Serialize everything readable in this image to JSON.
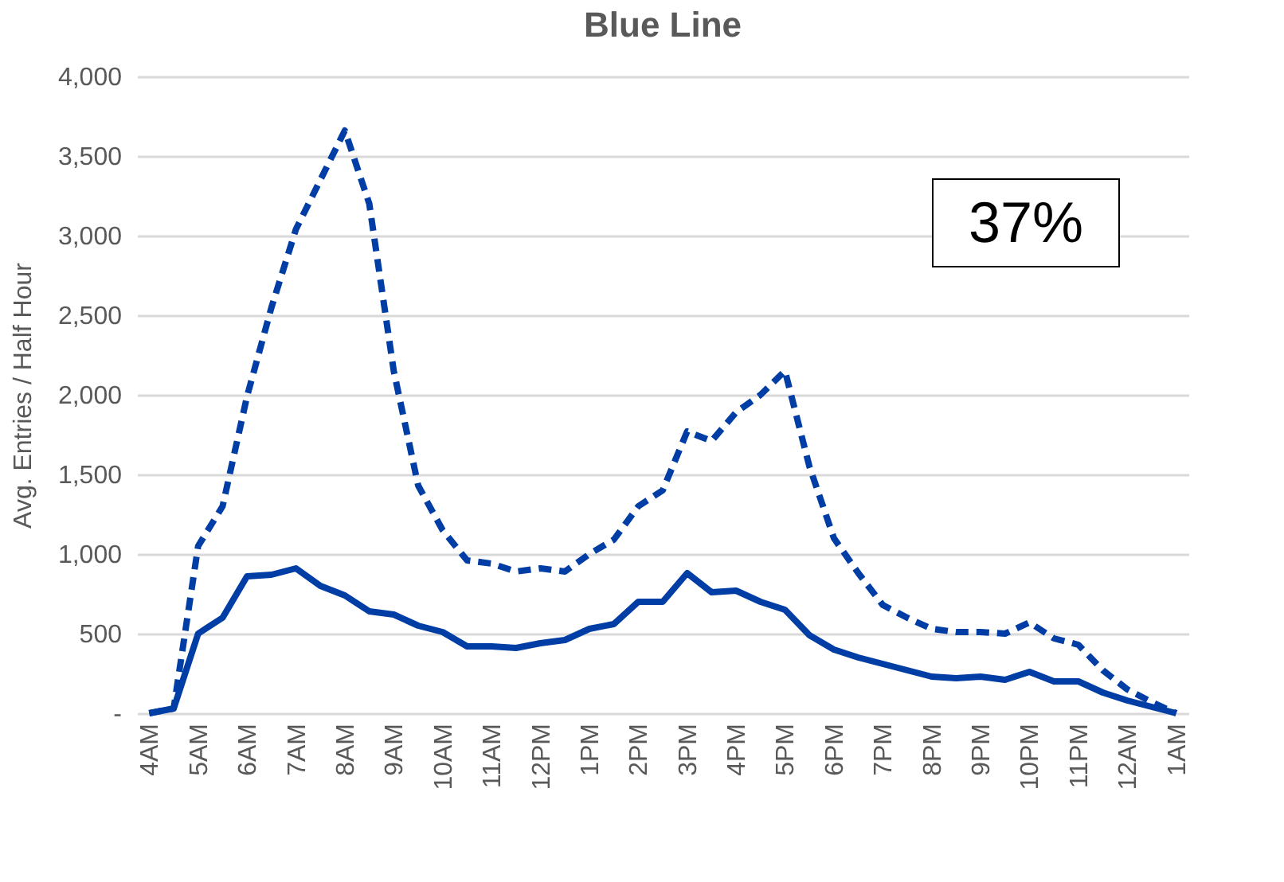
{
  "chart_data": {
    "type": "line",
    "title": "Blue Line",
    "ylabel": "Avg. Entries / Half Hour",
    "categories": [
      "4AM",
      null,
      "5AM",
      null,
      "6AM",
      null,
      "7AM",
      null,
      "8AM",
      null,
      "9AM",
      null,
      "10AM",
      null,
      "11AM",
      null,
      "12PM",
      null,
      "1PM",
      null,
      "2PM",
      null,
      "3PM",
      null,
      "4PM",
      null,
      "5PM",
      null,
      "6PM",
      null,
      "7PM",
      null,
      "8PM",
      null,
      "9PM",
      null,
      "10PM",
      null,
      "11PM",
      null,
      "12AM",
      null,
      "1AM"
    ],
    "series": [
      {
        "color": "#003da5",
        "line_style": "dashed",
        "values": [
          0,
          30,
          1050,
          1300,
          1990,
          2550,
          3040,
          3350,
          3660,
          3200,
          2150,
          1430,
          1150,
          960,
          940,
          890,
          910,
          890,
          1000,
          1090,
          1300,
          1400,
          1770,
          1710,
          1890,
          2000,
          2150,
          1550,
          1100,
          880,
          680,
          600,
          530,
          510,
          510,
          500,
          570,
          470,
          430,
          270,
          150,
          70,
          0
        ]
      },
      {
        "color": "#003da5",
        "line_style": "solid",
        "values": [
          0,
          30,
          500,
          600,
          860,
          870,
          910,
          800,
          740,
          640,
          620,
          550,
          510,
          420,
          420,
          410,
          440,
          460,
          530,
          560,
          700,
          700,
          880,
          760,
          770,
          700,
          650,
          490,
          400,
          350,
          310,
          270,
          230,
          220,
          230,
          210,
          260,
          200,
          200,
          130,
          80,
          40,
          0
        ]
      }
    ],
    "ylim": [
      0,
      4000
    ],
    "yticks": [
      {
        "value": 0,
        "label": "-"
      },
      500,
      {
        "value": 1000,
        "label": "1,000"
      },
      {
        "value": 1500,
        "label": "1,500"
      },
      {
        "value": 2000,
        "label": "2,000"
      },
      {
        "value": 2500,
        "label": "2,500"
      },
      {
        "value": 3000,
        "label": "3,000"
      },
      {
        "value": 3500,
        "label": "3,500"
      },
      {
        "value": 4000,
        "label": "4,000"
      }
    ],
    "grid": "y",
    "marker": "none",
    "annotations": [
      "37%"
    ]
  }
}
